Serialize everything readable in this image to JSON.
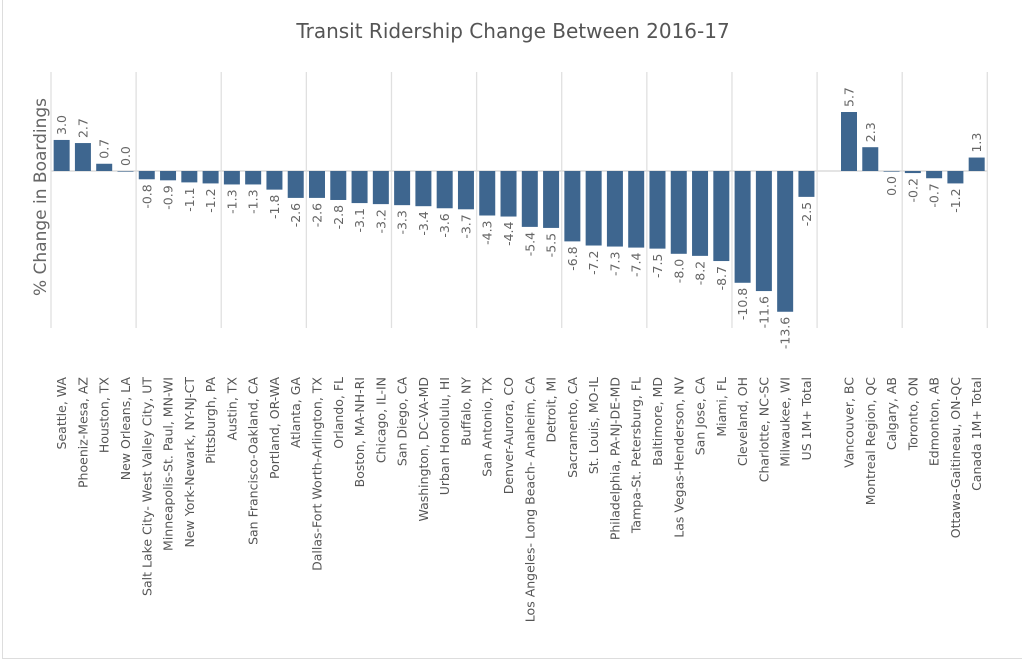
{
  "chart_data": {
    "type": "bar",
    "title": "Transit Ridership Change Between 2016-17",
    "ylabel": "% Change in Boardings",
    "xlabel": "",
    "bar_color": "#3e668f",
    "grid": true,
    "ylim": [
      -14,
      6
    ],
    "groups": [
      {
        "categories": [
          "Seattle, WA",
          "Phoeniz-Mesa, AZ",
          "Houston, TX",
          "New Orleans, LA",
          "Salt Lake City- West Valley City, UT",
          "Minneapolis-St. Paul, MN-WI",
          "New York-Newark, NY-NJ-CT",
          "Pittsburgh, PA",
          "Austin, TX",
          "San Francisco-Oakland, CA",
          "Portland, OR-WA",
          "Atlanta, GA",
          "Dallas-Fort Worth-Arlington, TX",
          "Orlando, FL",
          "Boston, MA-NH-RI",
          "Chicago, IL-IN",
          "San Diego, CA",
          "Washington, DC-VA-MD",
          "Urban Honolulu, HI",
          "Buffalo, NY",
          "San Antonio, TX",
          "Denver-Aurora, CO",
          "Los Angeles- Long Beach- Anaheim, CA",
          "Detroit, MI",
          "Sacramento, CA",
          "St. Louis, MO-IL",
          "Philadelphia, PA-NJ-DE-MD",
          "Tampa-St. Petersburg, FL",
          "Baltimore, MD",
          "Las Vegas-Henderson, NV",
          "San Jose, CA",
          "Miami, FL",
          "Cleveland, OH",
          "Charlotte, NC-SC",
          "Milwaukee, WI",
          "US 1M+ Total"
        ],
        "values": [
          3.0,
          2.7,
          0.7,
          0.0,
          -0.8,
          -0.9,
          -1.1,
          -1.2,
          -1.3,
          -1.3,
          -1.8,
          -2.6,
          -2.6,
          -2.8,
          -3.1,
          -3.2,
          -3.3,
          -3.4,
          -3.6,
          -3.7,
          -4.3,
          -4.4,
          -5.4,
          -5.5,
          -6.8,
          -7.2,
          -7.3,
          -7.4,
          -7.5,
          -8.0,
          -8.2,
          -8.7,
          -10.8,
          -11.6,
          -13.6,
          -2.5
        ]
      },
      {
        "categories": [
          "Vancouver, BC",
          "Montreal Region, QC",
          "Calgary, AB",
          "Toronto, ON",
          "Edmonton, AB",
          "Ottawa-Gaitineau, ON-QC",
          "Canada 1M+ Total"
        ],
        "values": [
          5.7,
          2.3,
          0.0,
          -0.2,
          -0.7,
          -1.2,
          1.3
        ]
      }
    ]
  }
}
